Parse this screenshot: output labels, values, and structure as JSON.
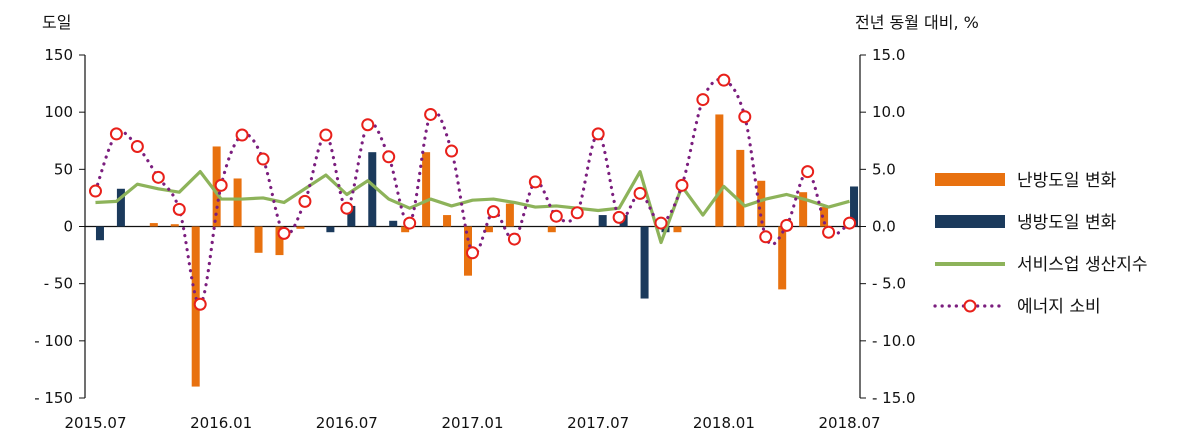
{
  "chart_data": {
    "type": "bar",
    "y_left_label": "도일",
    "y_right_label": "전년 동월 대비, %",
    "y_left_range": [
      -150,
      150
    ],
    "y_left_ticks": [
      "150",
      "100",
      "50",
      "0",
      "- 50",
      "- 100",
      "- 150"
    ],
    "y_right_range": [
      -15,
      15
    ],
    "y_right_ticks": [
      "15.0",
      "10.0",
      "5.0",
      "0.0",
      "- 5.0",
      "- 10.0",
      "- 15.0"
    ],
    "x_tick_labels": [
      "2015.07",
      "2016.01",
      "2016.07",
      "2017.01",
      "2017.07",
      "2018.01",
      "2018.07"
    ],
    "categories": [
      "2015.07",
      "2015.08",
      "2015.09",
      "2015.10",
      "2015.11",
      "2015.12",
      "2016.01",
      "2016.02",
      "2016.03",
      "2016.04",
      "2016.05",
      "2016.06",
      "2016.07",
      "2016.08",
      "2016.09",
      "2016.10",
      "2016.11",
      "2016.12",
      "2017.01",
      "2017.02",
      "2017.03",
      "2017.04",
      "2017.05",
      "2017.06",
      "2017.07",
      "2017.08",
      "2017.09",
      "2017.10",
      "2017.11",
      "2017.12",
      "2018.01",
      "2018.02",
      "2018.03",
      "2018.04",
      "2018.05",
      "2018.06",
      "2018.07"
    ],
    "series": [
      {
        "name": "난방도일 변화",
        "type": "bar",
        "axis": "left",
        "color": "#E8710F",
        "values": [
          0,
          0,
          0,
          3,
          2,
          -140,
          70,
          42,
          -23,
          -25,
          -2,
          0,
          0,
          0,
          0,
          -5,
          65,
          10,
          -43,
          -5,
          20,
          0,
          -5,
          0,
          0,
          0,
          0,
          0,
          -5,
          0,
          98,
          67,
          40,
          -55,
          30,
          17,
          0
        ]
      },
      {
        "name": "냉방도일 변화",
        "type": "bar",
        "axis": "left",
        "color": "#1B3A5C",
        "values": [
          -12,
          33,
          0,
          0,
          0,
          0,
          0,
          0,
          0,
          0,
          0,
          -5,
          18,
          65,
          5,
          0,
          0,
          0,
          0,
          0,
          0,
          0,
          0,
          0,
          10,
          10,
          -63,
          -5,
          0,
          0,
          0,
          0,
          0,
          0,
          0,
          0,
          35
        ]
      },
      {
        "name": "서비스업 생산지수",
        "type": "line",
        "axis": "right",
        "color": "#8DB35A",
        "values": [
          2.1,
          2.2,
          3.7,
          3.3,
          3.0,
          4.8,
          2.4,
          2.4,
          2.5,
          2.1,
          3.3,
          4.5,
          2.8,
          4.0,
          2.4,
          1.6,
          2.4,
          1.8,
          2.3,
          2.4,
          2.1,
          1.7,
          1.8,
          1.6,
          1.4,
          1.6,
          4.8,
          -1.4,
          3.5,
          1.0,
          3.5,
          1.8,
          2.4,
          2.8,
          2.3,
          1.7,
          2.2
        ]
      },
      {
        "name": "에너지 소비",
        "type": "line-dotted",
        "axis": "right",
        "color": "#7B1E7E",
        "marker_color": "#E8201A",
        "values": [
          3.1,
          8.1,
          7.0,
          4.3,
          1.5,
          -6.8,
          3.6,
          8.0,
          5.9,
          -0.6,
          2.2,
          8.0,
          1.6,
          8.9,
          6.1,
          0.3,
          9.8,
          6.6,
          -2.3,
          1.3,
          -1.1,
          3.9,
          0.9,
          1.2,
          8.1,
          0.8,
          2.9,
          0.3,
          3.6,
          11.1,
          12.8,
          9.6,
          -0.9,
          0.1,
          4.8,
          -0.5,
          0.3
        ]
      }
    ],
    "legend_position": "right",
    "grid": false
  }
}
